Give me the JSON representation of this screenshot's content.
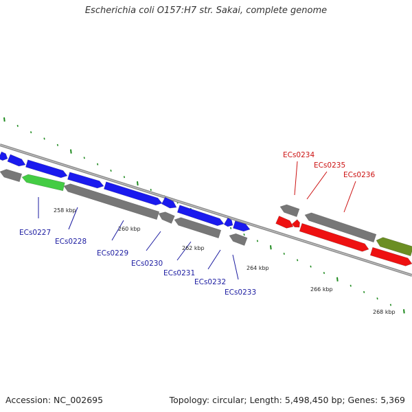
{
  "title": "Escherichia coli O157:H7 str. Sakai, complete genome",
  "footer": {
    "accession": "Accession: NC_002695",
    "stats": "Topology: circular; Length: 5,498,450 bp; Genes: 5,369"
  },
  "colors": {
    "forward_cds": "#1a1aee",
    "reverse_cds": "#777777",
    "highlight_green": "#44cc44",
    "highlight_red": "#ee1111",
    "highlight_olive": "#6b8e23",
    "backbone": "#8c8c8c",
    "tick": "#1e8a1e",
    "label_blue": "#1a1aa0",
    "label_red": "#cc1111"
  },
  "scale_labels": [
    "258 kbp",
    "260 kbp",
    "262 kbp",
    "264 kbp",
    "266 kbp",
    "268 kbp"
  ],
  "genes": [
    {
      "label": "ECs0227",
      "color": "blue"
    },
    {
      "label": "ECs0228",
      "color": "blue"
    },
    {
      "label": "ECs0229",
      "color": "blue"
    },
    {
      "label": "ECs0230",
      "color": "blue"
    },
    {
      "label": "ECs0231",
      "color": "blue"
    },
    {
      "label": "ECs0232",
      "color": "blue"
    },
    {
      "label": "ECs0233",
      "color": "blue"
    },
    {
      "label": "ECs0234",
      "color": "red"
    },
    {
      "label": "ECs0235",
      "color": "red"
    },
    {
      "label": "ECs0236",
      "color": "red"
    }
  ]
}
